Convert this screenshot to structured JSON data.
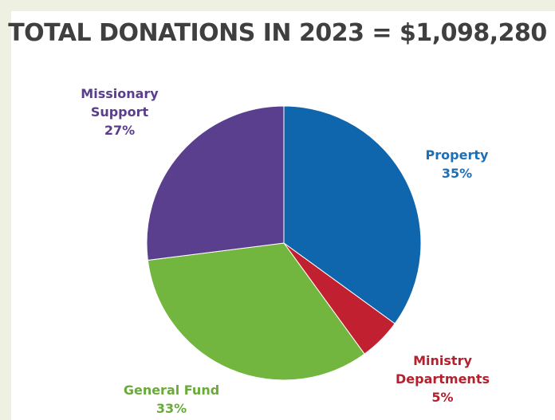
{
  "chart_data": {
    "type": "pie",
    "title": "TOTAL DONATIONS IN 2023 = $1,098,280",
    "slices": [
      {
        "label_lines": [
          "Property"
        ],
        "pct_label": "35%",
        "value": 35,
        "color": "#0f66ad"
      },
      {
        "label_lines": [
          "Ministry",
          "Departments"
        ],
        "pct_label": "5%",
        "value": 5,
        "color": "#c0202f"
      },
      {
        "label_lines": [
          "General Fund"
        ],
        "pct_label": "33%",
        "value": 33,
        "color": "#72b53f"
      },
      {
        "label_lines": [
          "Missionary",
          "Support"
        ],
        "pct_label": "27%",
        "value": 27,
        "color": "#5b3f8f"
      }
    ],
    "label_colors": [
      "#1f6fb5",
      "#b5202e",
      "#6aaa3a",
      "#5a3e8c"
    ]
  }
}
